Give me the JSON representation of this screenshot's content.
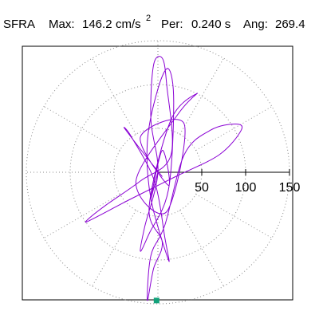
{
  "header": {
    "station": "SFRA",
    "max_label": "Max:",
    "max_value": "146.2",
    "max_unit": "cm/s",
    "max_unit_exp": "2",
    "period_label": "Per:",
    "period_value": "0.240 s",
    "angle_label": "Ang:",
    "angle_value": "269.4"
  },
  "chart_data": {
    "type": "scatter",
    "title": "",
    "xlabel": "",
    "ylabel": "",
    "radial_ticks": [
      50,
      100,
      150
    ],
    "radial_max": 150,
    "grid": true,
    "grid_style": "dotted polar (circles and 30° spokes)",
    "peak_marker": {
      "angle_deg": 269.4,
      "radius": 146.2,
      "color": "#13a27b"
    },
    "trace_color": "#8a00d4",
    "series": [
      {
        "points": [
          [
            0,
            0
          ],
          [
            -8,
            -30
          ],
          [
            5,
            25
          ],
          [
            12,
            -15
          ],
          [
            -20,
            40
          ],
          [
            30,
            55
          ],
          [
            10,
            -45
          ],
          [
            -25,
            -10
          ],
          [
            22,
            65
          ],
          [
            45,
            90
          ],
          [
            15,
            60
          ],
          [
            -10,
            -40
          ],
          [
            5,
            -80
          ],
          [
            -5,
            -110
          ],
          [
            -12,
            -146
          ],
          [
            -8,
            -95
          ],
          [
            8,
            -60
          ],
          [
            30,
            20
          ],
          [
            60,
            48
          ],
          [
            88,
            55
          ],
          [
            95,
            48
          ],
          [
            70,
            20
          ],
          [
            20,
            -5
          ],
          [
            -30,
            -30
          ],
          [
            -72,
            -52
          ],
          [
            -82,
            -56
          ],
          [
            -60,
            -38
          ],
          [
            -20,
            -10
          ],
          [
            15,
            20
          ],
          [
            10,
            100
          ],
          [
            5,
            130
          ],
          [
            -5,
            122
          ],
          [
            -8,
            60
          ],
          [
            0,
            0
          ],
          [
            -15,
            -62
          ],
          [
            -20,
            -90
          ],
          [
            -10,
            -70
          ],
          [
            12,
            -20
          ],
          [
            18,
            80
          ],
          [
            12,
            118
          ],
          [
            0,
            95
          ],
          [
            -12,
            35
          ],
          [
            -8,
            -30
          ],
          [
            12,
            -100
          ],
          [
            8,
            -75
          ],
          [
            -4,
            -10
          ],
          [
            -30,
            40
          ],
          [
            -38,
            50
          ],
          [
            -15,
            20
          ],
          [
            5,
            -5
          ]
        ]
      }
    ]
  }
}
